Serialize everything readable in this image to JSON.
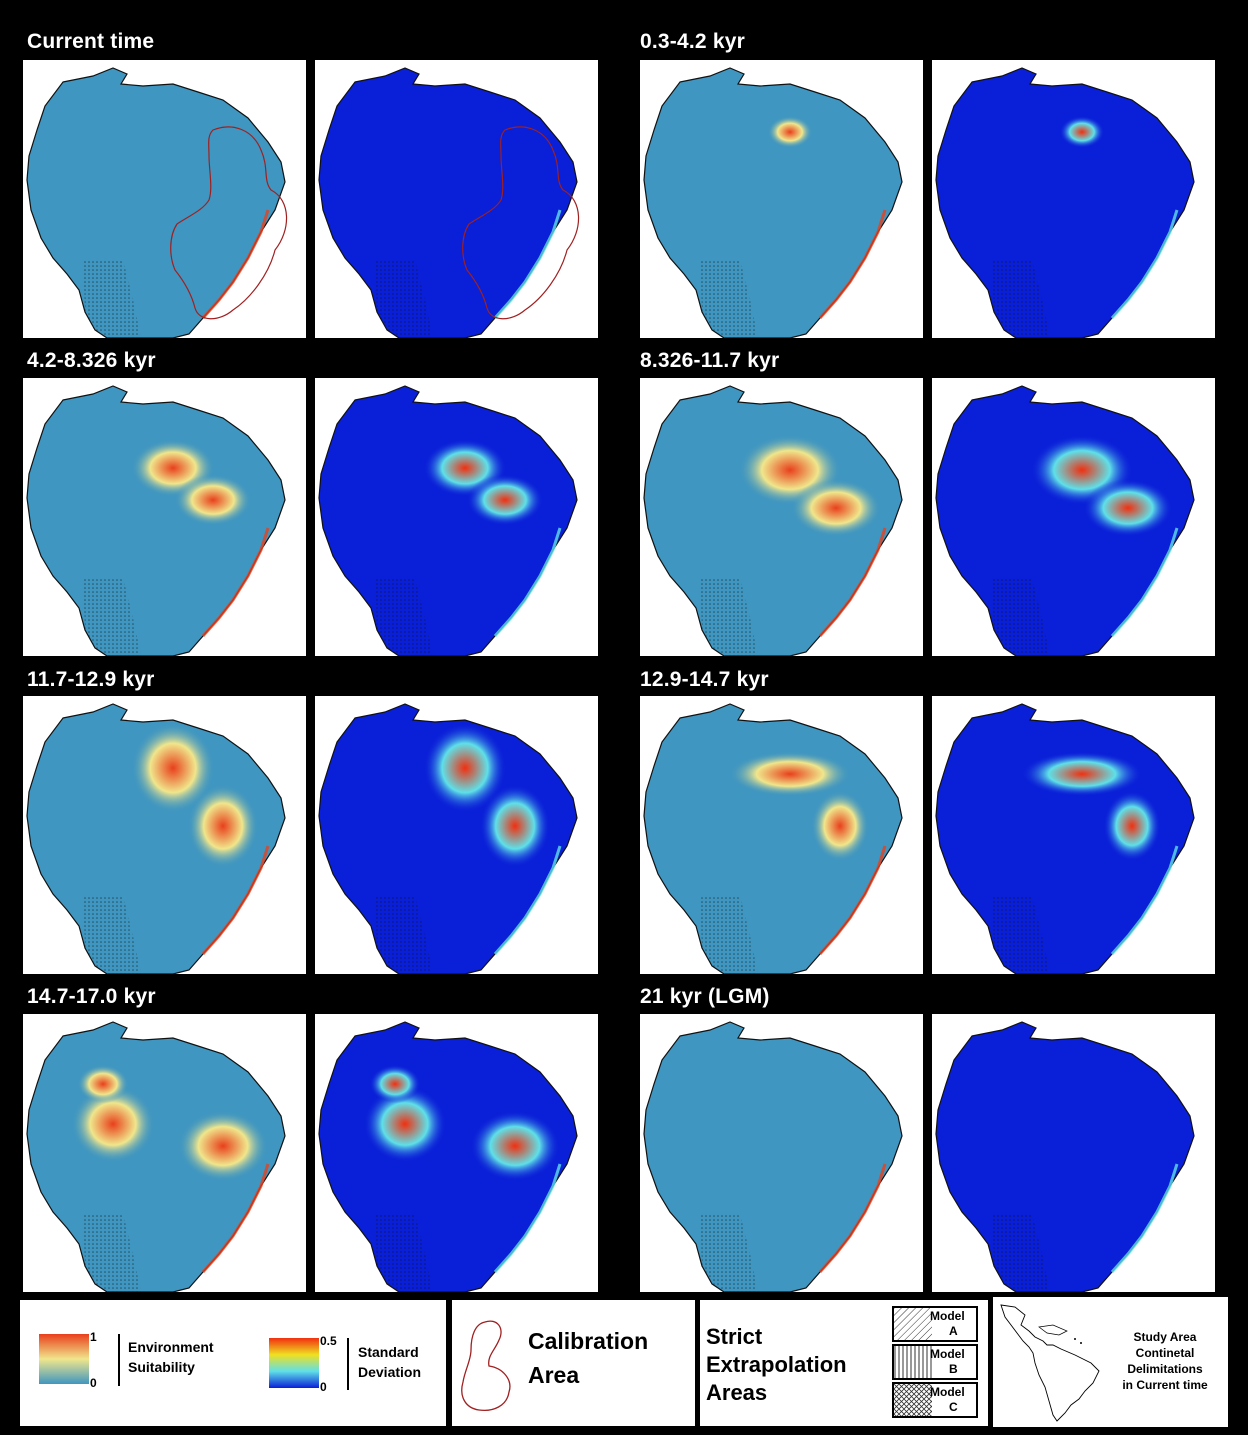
{
  "periods": [
    {
      "label": "Current time",
      "suit_hotspots": 0,
      "sd_hotspots": 0,
      "calibration": true
    },
    {
      "label": "0.3-4.2 kyr",
      "suit_hotspots": 1,
      "sd_hotspots": 1,
      "calibration": false
    },
    {
      "label": "4.2-8.326 kyr",
      "suit_hotspots": 2,
      "sd_hotspots": 2,
      "calibration": false
    },
    {
      "label": "8.326-11.7 kyr",
      "suit_hotspots": 2,
      "sd_hotspots": 2,
      "calibration": false
    },
    {
      "label": "11.7-12.9 kyr",
      "suit_hotspots": 2,
      "sd_hotspots": 2,
      "calibration": false
    },
    {
      "label": "12.9-14.7 kyr",
      "suit_hotspots": 2,
      "sd_hotspots": 2,
      "calibration": false
    },
    {
      "label": "14.7-17.0 kyr",
      "suit_hotspots": 3,
      "sd_hotspots": 3,
      "calibration": false
    },
    {
      "label": "21 kyr (LGM)",
      "suit_hotspots": 0,
      "sd_hotspots": 0,
      "calibration": false
    }
  ],
  "colors": {
    "suitability_low": "#3f96c0",
    "suitability_mid": "#f0e68c",
    "suitability_high": "#e8401c",
    "sd_low": "#0a1fd8",
    "sd_mid": "#5fe0e8",
    "sd_high": "#f03010",
    "calibration_outline": "#a02020"
  },
  "legend": {
    "suitability": {
      "max": "1",
      "min": "0",
      "label_line1": "Environment",
      "label_line2": "Suitability"
    },
    "sd": {
      "max": "0.5",
      "min": "0",
      "label_line1": "Standard",
      "label_line2": "Deviation"
    },
    "calibration": {
      "line1": "Calibration",
      "line2": "Area"
    },
    "extrapolation": {
      "line1": "Strict",
      "line2": "Extrapolation",
      "line3": "Areas",
      "models": [
        {
          "word": "Model",
          "letter": "A",
          "pattern": "diagonal"
        },
        {
          "word": "Model",
          "letter": "B",
          "pattern": "vertical"
        },
        {
          "word": "Model",
          "letter": "C",
          "pattern": "crosshatch"
        }
      ]
    },
    "study_area": {
      "line1": "Study Area",
      "line2": "Continetal",
      "line3": "Delimitations",
      "line4": "in Current time"
    }
  }
}
